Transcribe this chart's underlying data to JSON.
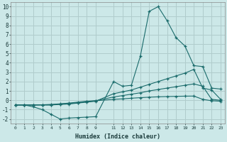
{
  "title": "",
  "xlabel": "Humidex (Indice chaleur)",
  "ylabel": "",
  "bg_color": "#cce8e8",
  "grid_color": "#b0cccc",
  "line_color": "#1a6b6b",
  "xlim": [
    -0.5,
    23.5
  ],
  "ylim": [
    -2.5,
    10.5
  ],
  "yticks": [
    -2,
    -1,
    0,
    1,
    2,
    3,
    4,
    5,
    6,
    7,
    8,
    9,
    10
  ],
  "xtick_labels": [
    "0",
    "1",
    "2",
    "3",
    "4",
    "5",
    "6",
    "7",
    "8",
    "9",
    "11",
    "12",
    "13",
    "14",
    "15",
    "16",
    "17",
    "18",
    "19",
    "20",
    "21",
    "22",
    "23"
  ],
  "xtick_pos": [
    0,
    1,
    2,
    3,
    4,
    5,
    6,
    7,
    8,
    9,
    11,
    12,
    13,
    14,
    15,
    16,
    17,
    18,
    19,
    20,
    21,
    22,
    23
  ],
  "series": [
    {
      "x": [
        0,
        1,
        2,
        3,
        4,
        5,
        6,
        7,
        8,
        9,
        11,
        12,
        13,
        14,
        15,
        16,
        17,
        18,
        19,
        20,
        21,
        22,
        23
      ],
      "y": [
        -0.5,
        -0.5,
        -0.7,
        -1.0,
        -1.5,
        -2.0,
        -1.9,
        -1.85,
        -1.8,
        -1.75,
        2.0,
        1.5,
        1.6,
        4.7,
        9.5,
        10.0,
        8.5,
        6.7,
        5.8,
        3.7,
        3.6,
        1.3,
        1.2
      ]
    },
    {
      "x": [
        0,
        1,
        2,
        3,
        4,
        5,
        6,
        7,
        8,
        9,
        11,
        12,
        13,
        14,
        15,
        16,
        17,
        18,
        19,
        20,
        21,
        22,
        23
      ],
      "y": [
        -0.5,
        -0.5,
        -0.5,
        -0.5,
        -0.5,
        -0.45,
        -0.4,
        -0.3,
        -0.2,
        -0.1,
        0.7,
        0.9,
        1.1,
        1.4,
        1.7,
        2.0,
        2.3,
        2.6,
        2.9,
        3.3,
        1.3,
        1.1,
        0.1
      ]
    },
    {
      "x": [
        0,
        1,
        2,
        3,
        4,
        5,
        6,
        7,
        8,
        9,
        11,
        12,
        13,
        14,
        15,
        16,
        17,
        18,
        19,
        20,
        21,
        22,
        23
      ],
      "y": [
        -0.5,
        -0.5,
        -0.5,
        -0.5,
        -0.5,
        -0.4,
        -0.35,
        -0.25,
        -0.15,
        -0.05,
        0.35,
        0.5,
        0.65,
        0.8,
        1.0,
        1.15,
        1.3,
        1.45,
        1.6,
        1.75,
        1.5,
        0.1,
        0.0
      ]
    },
    {
      "x": [
        0,
        1,
        2,
        3,
        4,
        5,
        6,
        7,
        8,
        9,
        11,
        12,
        13,
        14,
        15,
        16,
        17,
        18,
        19,
        20,
        21,
        22,
        23
      ],
      "y": [
        -0.5,
        -0.5,
        -0.5,
        -0.48,
        -0.44,
        -0.38,
        -0.3,
        -0.2,
        -0.1,
        -0.05,
        0.1,
        0.15,
        0.22,
        0.28,
        0.33,
        0.37,
        0.4,
        0.42,
        0.44,
        0.45,
        0.1,
        -0.05,
        -0.1
      ]
    }
  ]
}
